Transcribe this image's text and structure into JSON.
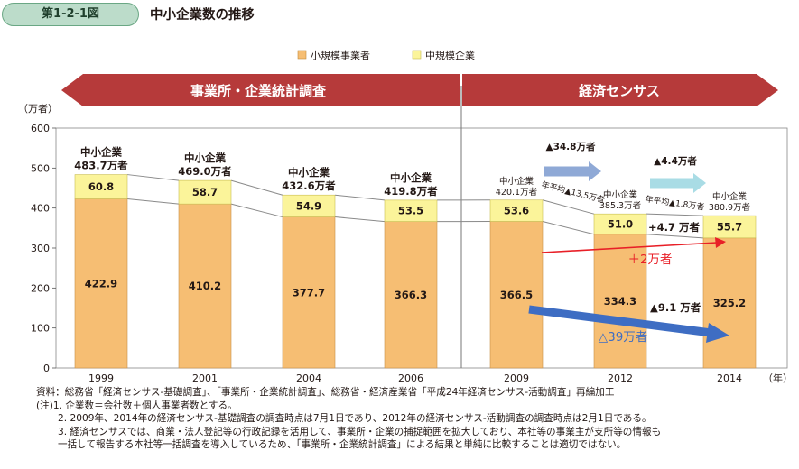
{
  "header": {
    "figure_number": "第1-2-1図",
    "title": "中小企業数の推移"
  },
  "colors": {
    "small": "#f6be73",
    "medium": "#fbf49a",
    "band": "#b63a3a",
    "blue_arrow": "#3e6dc3",
    "red_arrow": "#e81f27"
  },
  "chart_data": {
    "type": "bar",
    "stacked": true,
    "categories": [
      "1999",
      "2001",
      "2004",
      "2006",
      "2009",
      "2012",
      "2014"
    ],
    "x_unit": "（年）",
    "y_unit": "（万者）",
    "ylim": [
      0,
      600
    ],
    "yticks": [
      "0",
      "100",
      "200",
      "300",
      "400",
      "500",
      "600"
    ],
    "legend": {
      "position": "top",
      "entries": [
        "小規模事業者",
        "中規模企業"
      ]
    },
    "series": [
      {
        "name": "小規模事業者",
        "values": [
          422.9,
          410.2,
          377.7,
          366.3,
          366.5,
          334.3,
          325.2
        ],
        "labels": [
          "422.9",
          "410.2",
          "377.7",
          "366.3",
          "366.5",
          "334.3",
          "325.2"
        ]
      },
      {
        "name": "中規模企業",
        "values": [
          60.8,
          58.7,
          54.9,
          53.5,
          53.6,
          51.0,
          55.7
        ],
        "labels": [
          "60.8",
          "58.7",
          "54.9",
          "53.5",
          "53.6",
          "51.0",
          "55.7"
        ]
      }
    ],
    "totals": [
      "483.7",
      "469.0",
      "432.6",
      "419.8",
      "420.1",
      "385.3",
      "380.9"
    ],
    "total_prefix": "中小企業",
    "total_suffix": "万者",
    "bands": [
      {
        "label": "事業所・企業統計調査"
      },
      {
        "label": "経済センサス"
      }
    ],
    "annotations": {
      "decrease_2009_2012": "▲34.8万者",
      "annual_2009_2012": "年平均▲13.5万者",
      "decrease_2012_2014": "▲4.4万者",
      "annual_2012_2014": "年平均▲1.8万者",
      "medium_increase": "+4.7 万者",
      "small_decrease": "▲9.1 万者",
      "red_arrow_label": "＋2万者",
      "blue_arrow_label": "△39万者"
    }
  },
  "notes": [
    "資料：総務省「経済センサス‐基礎調査」、「事業所・企業統計調査」、総務省・経済産業省「平成24年経済センサス‐活動調査」再編加工",
    "(注)1. 企業数＝会社数＋個人事業者数とする。",
    "2. 2009年、2014年の経済センサス‐基礎調査の調査時点は7月1日であり、2012年の経済センサス‐活動調査の調査時点は2月1日である。",
    "3. 経済センサスでは、商業・法人登記等の行政記録を活用して、事業所・企業の捕捉範囲を拡大しており、本社等の事業主が支所等の情報も",
    "一括して報告する本社等一括調査を導入しているため、「事業所・企業統計調査」による結果と単純に比較することは適切ではない。"
  ]
}
